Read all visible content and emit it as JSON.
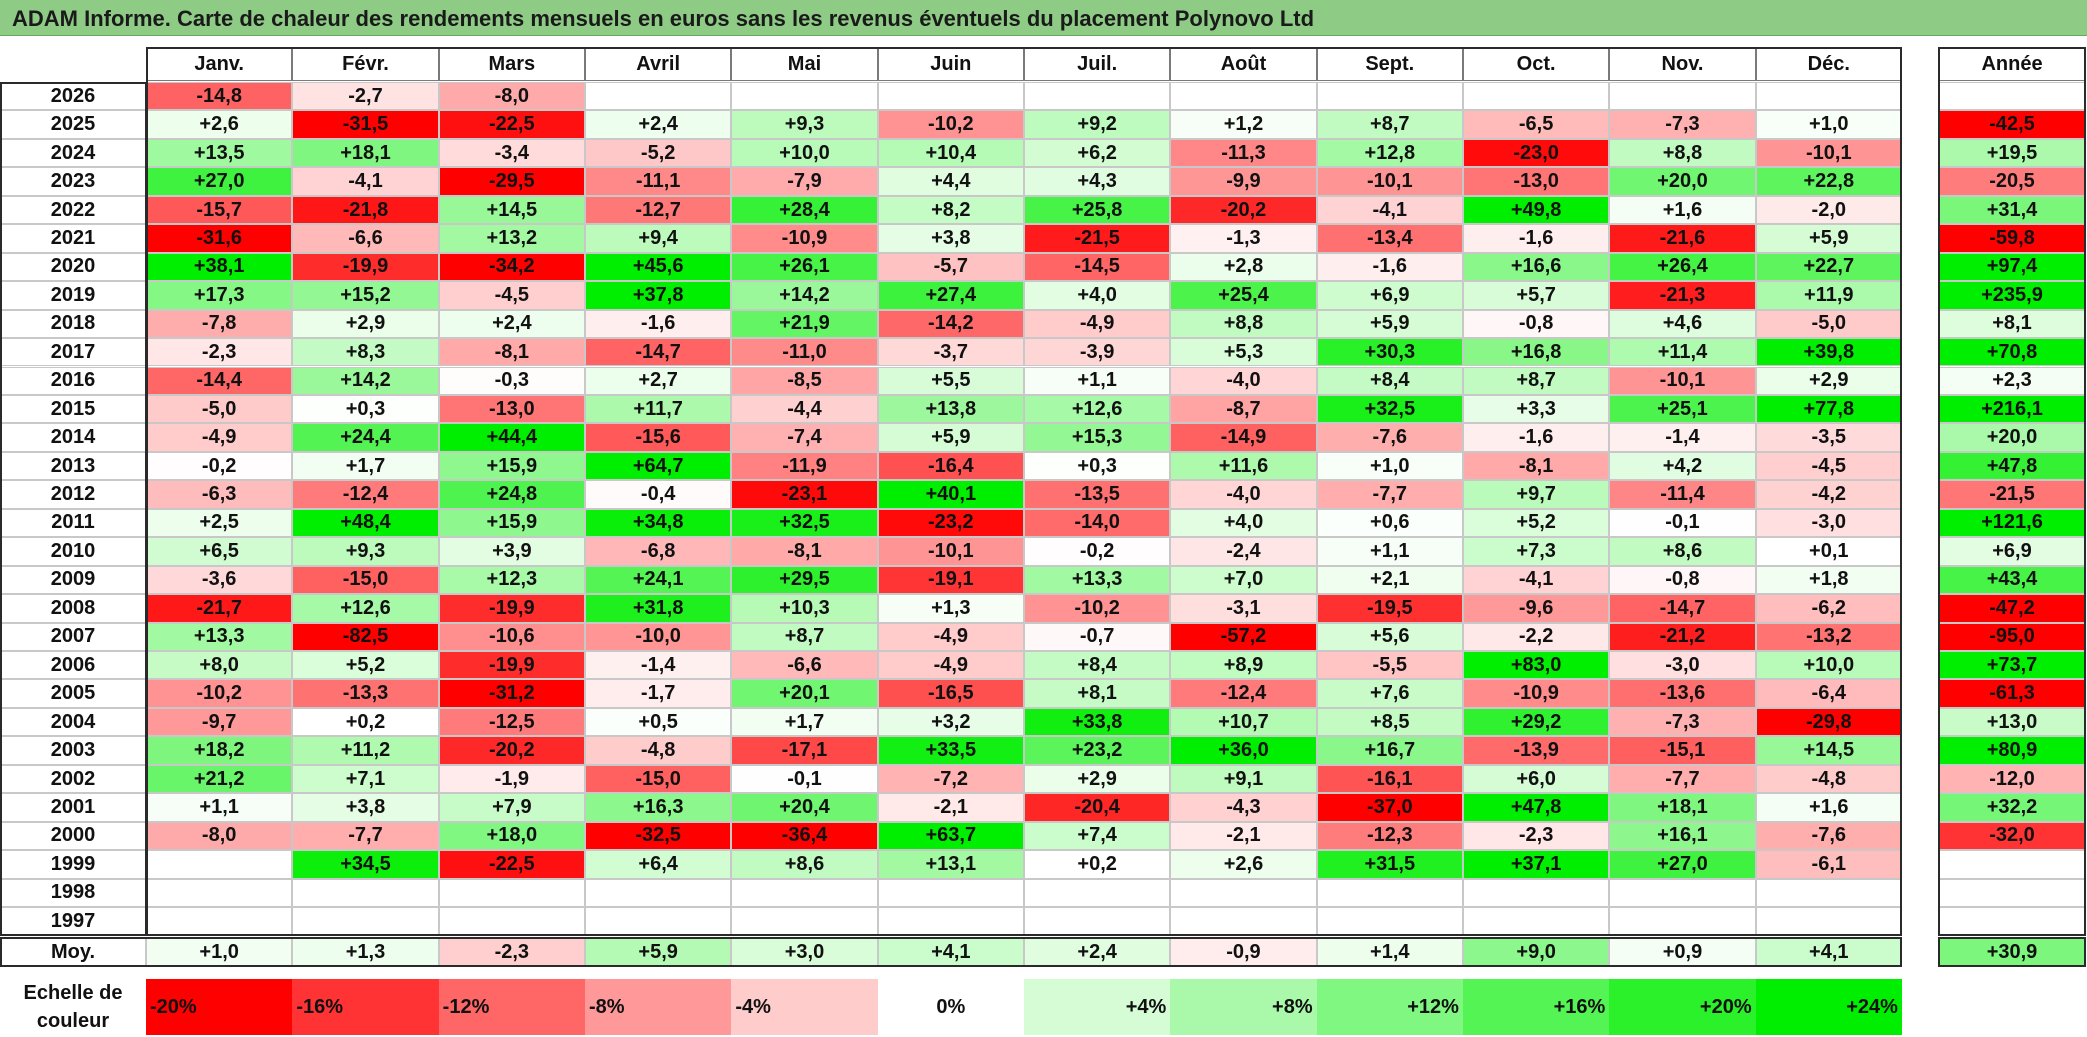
{
  "title": "ADAM Informe. Carte de chaleur des rendements mensuels en euros sans les revenus éventuels du placement Polynovo Ltd",
  "chart_data": {
    "type": "heatmap",
    "columns": [
      "Janv.",
      "Févr.",
      "Mars",
      "Avril",
      "Mai",
      "Juin",
      "Juil.",
      "Août",
      "Sept.",
      "Oct.",
      "Nov.",
      "Déc."
    ],
    "year_column_label": "Année",
    "rows": [
      {
        "year": "2026",
        "months": [
          "-14,8",
          "-2,7",
          "-8,0",
          "",
          "",
          "",
          "",
          "",
          "",
          "",
          "",
          ""
        ],
        "annual": ""
      },
      {
        "year": "2025",
        "months": [
          "+2,6",
          "-31,5",
          "-22,5",
          "+2,4",
          "+9,3",
          "-10,2",
          "+9,2",
          "+1,2",
          "+8,7",
          "-6,5",
          "-7,3",
          "+1,0"
        ],
        "annual": "-42,5"
      },
      {
        "year": "2024",
        "months": [
          "+13,5",
          "+18,1",
          "-3,4",
          "-5,2",
          "+10,0",
          "+10,4",
          "+6,2",
          "-11,3",
          "+12,8",
          "-23,0",
          "+8,8",
          "-10,1"
        ],
        "annual": "+19,5"
      },
      {
        "year": "2023",
        "months": [
          "+27,0",
          "-4,1",
          "-29,5",
          "-11,1",
          "-7,9",
          "+4,4",
          "+4,3",
          "-9,9",
          "-10,1",
          "-13,0",
          "+20,0",
          "+22,8"
        ],
        "annual": "-20,5"
      },
      {
        "year": "2022",
        "months": [
          "-15,7",
          "-21,8",
          "+14,5",
          "-12,7",
          "+28,4",
          "+8,2",
          "+25,8",
          "-20,2",
          "-4,1",
          "+49,8",
          "+1,6",
          "-2,0"
        ],
        "annual": "+31,4"
      },
      {
        "year": "2021",
        "months": [
          "-31,6",
          "-6,6",
          "+13,2",
          "+9,4",
          "-10,9",
          "+3,8",
          "-21,5",
          "-1,3",
          "-13,4",
          "-1,6",
          "-21,6",
          "+5,9"
        ],
        "annual": "-59,8"
      },
      {
        "year": "2020",
        "months": [
          "+38,1",
          "-19,9",
          "-34,2",
          "+45,6",
          "+26,1",
          "-5,7",
          "-14,5",
          "+2,8",
          "-1,6",
          "+16,6",
          "+26,4",
          "+22,7"
        ],
        "annual": "+97,4"
      },
      {
        "year": "2019",
        "months": [
          "+17,3",
          "+15,2",
          "-4,5",
          "+37,8",
          "+14,2",
          "+27,4",
          "+4,0",
          "+25,4",
          "+6,9",
          "+5,7",
          "-21,3",
          "+11,9"
        ],
        "annual": "+235,9"
      },
      {
        "year": "2018",
        "months": [
          "-7,8",
          "+2,9",
          "+2,4",
          "-1,6",
          "+21,9",
          "-14,2",
          "-4,9",
          "+8,8",
          "+5,9",
          "-0,8",
          "+4,6",
          "-5,0"
        ],
        "annual": "+8,1"
      },
      {
        "year": "2017",
        "months": [
          "-2,3",
          "+8,3",
          "-8,1",
          "-14,7",
          "-11,0",
          "-3,7",
          "-3,9",
          "+5,3",
          "+30,3",
          "+16,8",
          "+11,4",
          "+39,8"
        ],
        "annual": "+70,8"
      },
      {
        "year": "2016",
        "months": [
          "-14,4",
          "+14,2",
          "-0,3",
          "+2,7",
          "-8,5",
          "+5,5",
          "+1,1",
          "-4,0",
          "+8,4",
          "+8,7",
          "-10,1",
          "+2,9"
        ],
        "annual": "+2,3"
      },
      {
        "year": "2015",
        "months": [
          "-5,0",
          "+0,3",
          "-13,0",
          "+11,7",
          "-4,4",
          "+13,8",
          "+12,6",
          "-8,7",
          "+32,5",
          "+3,3",
          "+25,1",
          "+77,8"
        ],
        "annual": "+216,1"
      },
      {
        "year": "2014",
        "months": [
          "-4,9",
          "+24,4",
          "+44,4",
          "-15,6",
          "-7,4",
          "+5,9",
          "+15,3",
          "-14,9",
          "-7,6",
          "-1,6",
          "-1,4",
          "-3,5"
        ],
        "annual": "+20,0"
      },
      {
        "year": "2013",
        "months": [
          "-0,2",
          "+1,7",
          "+15,9",
          "+64,7",
          "-11,9",
          "-16,4",
          "+0,3",
          "+11,6",
          "+1,0",
          "-8,1",
          "+4,2",
          "-4,5"
        ],
        "annual": "+47,8"
      },
      {
        "year": "2012",
        "months": [
          "-6,3",
          "-12,4",
          "+24,8",
          "-0,4",
          "-23,1",
          "+40,1",
          "-13,5",
          "-4,0",
          "-7,7",
          "+9,7",
          "-11,4",
          "-4,2"
        ],
        "annual": "-21,5"
      },
      {
        "year": "2011",
        "months": [
          "+2,5",
          "+48,4",
          "+15,9",
          "+34,8",
          "+32,5",
          "-23,2",
          "-14,0",
          "+4,0",
          "+0,6",
          "+5,2",
          "-0,1",
          "-3,0"
        ],
        "annual": "+121,6"
      },
      {
        "year": "2010",
        "months": [
          "+6,5",
          "+9,3",
          "+3,9",
          "-6,8",
          "-8,1",
          "-10,1",
          "-0,2",
          "-2,4",
          "+1,1",
          "+7,3",
          "+8,6",
          "+0,1"
        ],
        "annual": "+6,9"
      },
      {
        "year": "2009",
        "months": [
          "-3,6",
          "-15,0",
          "+12,3",
          "+24,1",
          "+29,5",
          "-19,1",
          "+13,3",
          "+7,0",
          "+2,1",
          "-4,1",
          "-0,8",
          "+1,8"
        ],
        "annual": "+43,4"
      },
      {
        "year": "2008",
        "months": [
          "-21,7",
          "+12,6",
          "-19,9",
          "+31,8",
          "+10,3",
          "+1,3",
          "-10,2",
          "-3,1",
          "-19,5",
          "-9,6",
          "-14,7",
          "-6,2"
        ],
        "annual": "-47,2"
      },
      {
        "year": "2007",
        "months": [
          "+13,3",
          "-82,5",
          "-10,6",
          "-10,0",
          "+8,7",
          "-4,9",
          "-0,7",
          "-57,2",
          "+5,6",
          "-2,2",
          "-21,2",
          "-13,2"
        ],
        "annual": "-95,0"
      },
      {
        "year": "2006",
        "months": [
          "+8,0",
          "+5,2",
          "-19,9",
          "-1,4",
          "-6,6",
          "-4,9",
          "+8,4",
          "+8,9",
          "-5,5",
          "+83,0",
          "-3,0",
          "+10,0"
        ],
        "annual": "+73,7"
      },
      {
        "year": "2005",
        "months": [
          "-10,2",
          "-13,3",
          "-31,2",
          "-1,7",
          "+20,1",
          "-16,5",
          "+8,1",
          "-12,4",
          "+7,6",
          "-10,9",
          "-13,6",
          "-6,4"
        ],
        "annual": "-61,3"
      },
      {
        "year": "2004",
        "months": [
          "-9,7",
          "+0,2",
          "-12,5",
          "+0,5",
          "+1,7",
          "+3,2",
          "+33,8",
          "+10,7",
          "+8,5",
          "+29,2",
          "-7,3",
          "-29,8"
        ],
        "annual": "+13,0"
      },
      {
        "year": "2003",
        "months": [
          "+18,2",
          "+11,2",
          "-20,2",
          "-4,8",
          "-17,1",
          "+33,5",
          "+23,2",
          "+36,0",
          "+16,7",
          "-13,9",
          "-15,1",
          "+14,5"
        ],
        "annual": "+80,9"
      },
      {
        "year": "2002",
        "months": [
          "+21,2",
          "+7,1",
          "-1,9",
          "-15,0",
          "-0,1",
          "-7,2",
          "+2,9",
          "+9,1",
          "-16,1",
          "+6,0",
          "-7,7",
          "-4,8"
        ],
        "annual": "-12,0"
      },
      {
        "year": "2001",
        "months": [
          "+1,1",
          "+3,8",
          "+7,9",
          "+16,3",
          "+20,4",
          "-2,1",
          "-20,4",
          "-4,3",
          "-37,0",
          "+47,8",
          "+18,1",
          "+1,6"
        ],
        "annual": "+32,2"
      },
      {
        "year": "2000",
        "months": [
          "-8,0",
          "-7,7",
          "+18,0",
          "-32,5",
          "-36,4",
          "+63,7",
          "+7,4",
          "-2,1",
          "-12,3",
          "-2,3",
          "+16,1",
          "-7,6"
        ],
        "annual": "-32,0"
      },
      {
        "year": "1999",
        "months": [
          "",
          "+34,5",
          "-22,5",
          "+6,4",
          "+8,6",
          "+13,1",
          "+0,2",
          "+2,6",
          "+31,5",
          "+37,1",
          "+27,0",
          "-6,1"
        ],
        "annual": ""
      },
      {
        "year": "1998",
        "months": [
          "",
          "",
          "",
          "",
          "",
          "",
          "",
          "",
          "",
          "",
          "",
          ""
        ],
        "annual": ""
      },
      {
        "year": "1997",
        "months": [
          "",
          "",
          "",
          "",
          "",
          "",
          "",
          "",
          "",
          "",
          "",
          ""
        ],
        "annual": ""
      }
    ],
    "average": {
      "label": "Moy.",
      "months": [
        "+1,0",
        "+1,3",
        "-2,3",
        "+5,9",
        "+3,0",
        "+4,1",
        "+2,4",
        "-0,9",
        "+1,4",
        "+9,0",
        "+0,9",
        "+4,1"
      ],
      "annual": "+30,9"
    },
    "scale": {
      "label_line1": "Echelle de",
      "label_line2": "couleur",
      "steps": [
        {
          "label": "-20%",
          "value": -20,
          "align": "left"
        },
        {
          "label": "-16%",
          "value": -16,
          "align": "left"
        },
        {
          "label": "-12%",
          "value": -12,
          "align": "left"
        },
        {
          "label": "-8%",
          "value": -8,
          "align": "left"
        },
        {
          "label": "-4%",
          "value": -4,
          "align": "left"
        },
        {
          "label": "0%",
          "value": 0,
          "align": "center"
        },
        {
          "label": "+4%",
          "value": 4,
          "align": "right"
        },
        {
          "label": "+8%",
          "value": 8,
          "align": "right"
        },
        {
          "label": "+12%",
          "value": 12,
          "align": "right"
        },
        {
          "label": "+16%",
          "value": 16,
          "align": "right"
        },
        {
          "label": "+20%",
          "value": 20,
          "align": "right"
        },
        {
          "label": "+24%",
          "value": 24,
          "align": "right"
        }
      ],
      "negative_color": "#ff0000",
      "positive_color": "#00ee00",
      "neutral_color": "#ffffff"
    }
  }
}
